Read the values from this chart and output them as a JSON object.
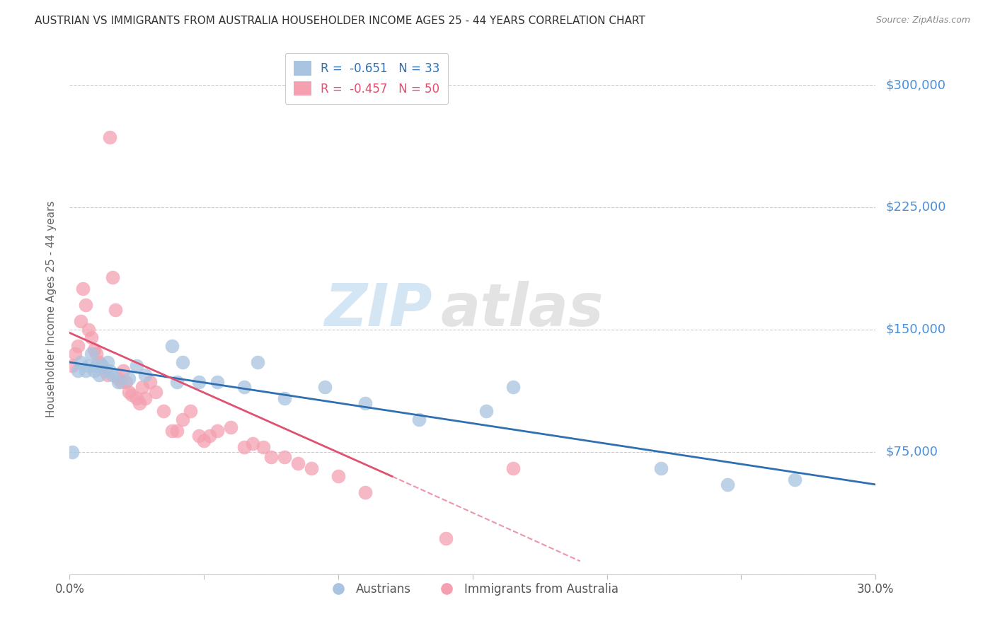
{
  "title": "AUSTRIAN VS IMMIGRANTS FROM AUSTRALIA HOUSEHOLDER INCOME AGES 25 - 44 YEARS CORRELATION CHART",
  "source": "Source: ZipAtlas.com",
  "ylabel": "Householder Income Ages 25 - 44 years",
  "yticks": [
    0,
    75000,
    150000,
    225000,
    300000
  ],
  "ytick_labels": [
    "",
    "$75,000",
    "$150,000",
    "$225,000",
    "$300,000"
  ],
  "xmin": 0.0,
  "xmax": 0.3,
  "ymin": 0,
  "ymax": 325000,
  "legend_blue_label": "R =  -0.651   N = 33",
  "legend_pink_label": "R =  -0.457   N = 50",
  "legend_blue_series": "Austrians",
  "legend_pink_series": "Immigrants from Australia",
  "blue_color": "#a8c4e0",
  "pink_color": "#f4a0b0",
  "blue_line_color": "#3070b0",
  "pink_line_color": "#e05070",
  "watermark_zip": "ZIP",
  "watermark_atlas": "atlas",
  "blue_x": [
    0.001,
    0.003,
    0.004,
    0.006,
    0.007,
    0.008,
    0.009,
    0.01,
    0.011,
    0.012,
    0.014,
    0.015,
    0.016,
    0.018,
    0.022,
    0.025,
    0.028,
    0.038,
    0.04,
    0.042,
    0.048,
    0.055,
    0.065,
    0.07,
    0.08,
    0.095,
    0.11,
    0.13,
    0.155,
    0.165,
    0.22,
    0.245,
    0.27
  ],
  "blue_y": [
    75000,
    125000,
    130000,
    125000,
    128000,
    135000,
    125000,
    128000,
    122000,
    128000,
    130000,
    125000,
    122000,
    118000,
    120000,
    128000,
    122000,
    140000,
    118000,
    130000,
    118000,
    118000,
    115000,
    130000,
    108000,
    115000,
    105000,
    95000,
    100000,
    115000,
    65000,
    55000,
    58000
  ],
  "pink_x": [
    0.001,
    0.002,
    0.003,
    0.004,
    0.005,
    0.006,
    0.007,
    0.008,
    0.009,
    0.01,
    0.011,
    0.012,
    0.013,
    0.014,
    0.015,
    0.016,
    0.017,
    0.018,
    0.019,
    0.02,
    0.021,
    0.022,
    0.023,
    0.025,
    0.026,
    0.027,
    0.028,
    0.03,
    0.032,
    0.035,
    0.038,
    0.04,
    0.042,
    0.045,
    0.048,
    0.05,
    0.052,
    0.055,
    0.06,
    0.065,
    0.068,
    0.072,
    0.075,
    0.08,
    0.085,
    0.09,
    0.1,
    0.11,
    0.14,
    0.165
  ],
  "pink_y": [
    128000,
    135000,
    140000,
    155000,
    175000,
    165000,
    150000,
    145000,
    138000,
    135000,
    130000,
    128000,
    125000,
    122000,
    268000,
    182000,
    162000,
    120000,
    118000,
    125000,
    118000,
    112000,
    110000,
    108000,
    105000,
    115000,
    108000,
    118000,
    112000,
    100000,
    88000,
    88000,
    95000,
    100000,
    85000,
    82000,
    85000,
    88000,
    90000,
    78000,
    80000,
    78000,
    72000,
    72000,
    68000,
    65000,
    60000,
    50000,
    22000,
    65000
  ]
}
